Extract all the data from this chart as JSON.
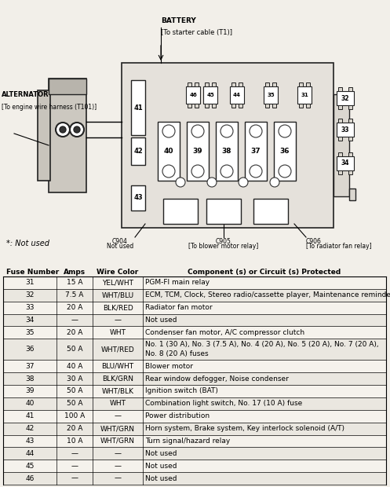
{
  "diagram_labels": {
    "battery_line1": "BATTERY",
    "battery_line2": "[To starter cable (T1)]",
    "alternator_line1": "ALTERNATOR",
    "alternator_line2": "[To engine wire harness (T101)]",
    "c904_line1": "C904",
    "c904_line2": "Not used",
    "c905_line1": "C905",
    "c905_line2": "[To blower motor relay]",
    "c906_line1": "C906",
    "c906_line2": "[To radiator fan relay]",
    "not_used_note": "*: Not used"
  },
  "fuse_numbers_top": [
    "46",
    "45",
    "44",
    "35",
    "31"
  ],
  "fuse_numbers_mid": [
    "40",
    "39",
    "38",
    "37",
    "36"
  ],
  "fuse_numbers_right": [
    "32",
    "33",
    "34"
  ],
  "fuse_labels_left": [
    "41",
    "42",
    "43"
  ],
  "table_headers": [
    "Fuse Number",
    "Amps",
    "Wire Color",
    "Component (s) or Circuit (s) Protected"
  ],
  "table_rows": [
    [
      "31",
      "15 A",
      "YEL/WHT",
      "PGM-FI main relay"
    ],
    [
      "32",
      "7.5 A",
      "WHT/BLU",
      "ECM, TCM, Clock, Stereo radio/cassette player, Maintenance reminder unit"
    ],
    [
      "33",
      "20 A",
      "BLK/RED",
      "Radiator fan motor"
    ],
    [
      "34",
      "—",
      "—",
      "Not used"
    ],
    [
      "35",
      "20 A",
      "WHT",
      "Condenser fan motor, A/C compressor clutch"
    ],
    [
      "36",
      "50 A",
      "WHT/RED",
      "No. 1 (30 A), No. 3 (7.5 A), No. 4 (20 A), No. 5 (20 A), No. 7 (20 A),\nNo. 8 (20 A) fuses"
    ],
    [
      "37",
      "40 A",
      "BLU/WHT",
      "Blower motor"
    ],
    [
      "38",
      "30 A",
      "BLK/GRN",
      "Rear window defogger, Noise condenser"
    ],
    [
      "39",
      "50 A",
      "WHT/BLK",
      "Ignition switch (BAT)"
    ],
    [
      "40",
      "50 A",
      "WHT",
      "Combination light switch, No. 17 (10 A) fuse"
    ],
    [
      "41",
      "100 A",
      "—",
      "Power distribution"
    ],
    [
      "42",
      "20 A",
      "WHT/GRN",
      "Horn system, Brake system, Key interlock solenoid (A/T)"
    ],
    [
      "43",
      "10 A",
      "WHT/GRN",
      "Turn signal/hazard relay"
    ],
    [
      "44",
      "—",
      "—",
      "Not used"
    ],
    [
      "45",
      "—",
      "—",
      "Not used"
    ],
    [
      "46",
      "—",
      "—",
      "Not used"
    ]
  ],
  "bg_color": "#f2efe9"
}
